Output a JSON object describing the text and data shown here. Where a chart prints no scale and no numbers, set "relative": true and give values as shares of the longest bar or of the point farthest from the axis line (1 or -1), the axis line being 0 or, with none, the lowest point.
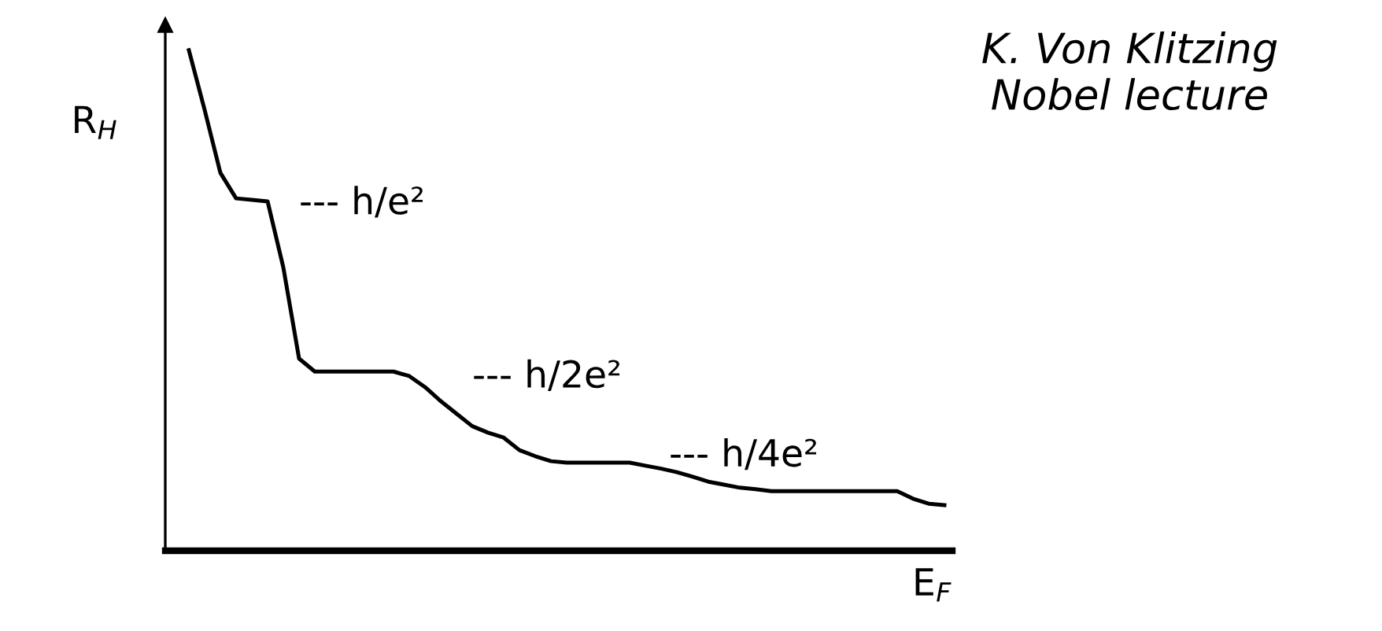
{
  "chart_data": {
    "type": "line",
    "relative": true,
    "xlabel": "E$_{F}$",
    "ylabel": "R$_{H}$",
    "categories": [
      null,
      null,
      null,
      null,
      null,
      null,
      null,
      null,
      null,
      null,
      null,
      null,
      null,
      null,
      null,
      null,
      null,
      null,
      null,
      null,
      null,
      null,
      null,
      null,
      null,
      null,
      null,
      null,
      null,
      null,
      null,
      null,
      null,
      null,
      null,
      null,
      null,
      null,
      null,
      null,
      null,
      null,
      null,
      null,
      null,
      null,
      null,
      null,
      null
    ],
    "series": [
      {
        "color": "#000000",
        "values": [
          1.0,
          0.881,
          0.755,
          0.704,
          0.701,
          0.698,
          0.566,
          0.384,
          0.358,
          0.358,
          0.358,
          0.358,
          0.358,
          0.358,
          0.349,
          0.327,
          0.299,
          0.274,
          0.249,
          0.236,
          0.226,
          0.201,
          0.189,
          0.179,
          0.176,
          0.176,
          0.176,
          0.176,
          0.176,
          0.17,
          0.164,
          0.157,
          0.148,
          0.138,
          0.132,
          0.126,
          0.123,
          0.119,
          0.119,
          0.119,
          0.119,
          0.119,
          0.119,
          0.119,
          0.119,
          0.119,
          0.104,
          0.094,
          0.091
        ]
      }
    ],
    "annotations": [
      "--- h/e²",
      "--- h/2e²",
      "--- h/4e²",
      "K. Von Klitzing\nNobel lecture"
    ],
    "grid": false,
    "marker": "none",
    "line_style": "solid"
  }
}
